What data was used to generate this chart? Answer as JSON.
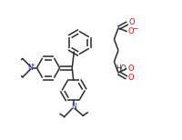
{
  "bg_color": "#ffffff",
  "line_color": "#2a2a2a",
  "n_color": "#3333bb",
  "o_color": "#cc1111",
  "lw": 1.1,
  "figsize": [
    2.0,
    1.54
  ],
  "dpi": 100,
  "xlim": [
    0.0,
    1.0
  ],
  "ylim": [
    0.0,
    1.0
  ]
}
